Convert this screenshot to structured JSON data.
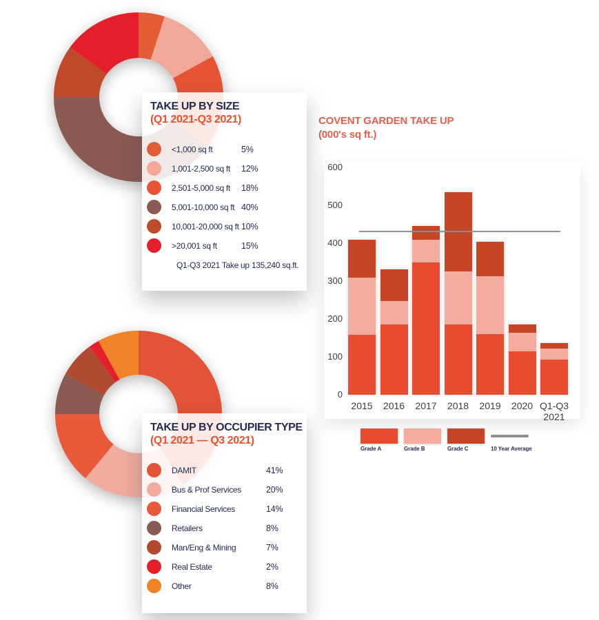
{
  "page_title": "Covent Garden Take Up Infographic",
  "accent_colors": {
    "navy_text": "#252A52",
    "orange_subtitle": "#E8512F",
    "bar_title_salmon": "#E2604C",
    "axis_text": "#3D3D3D",
    "average_line_gray": "#8F8F8F"
  },
  "chart_data": [
    {
      "type": "pie",
      "donut": true,
      "title": "TAKE UP BY SIZE",
      "subtitle": "(Q1 2021-Q3 2021)",
      "footnote": "Q1-Q3 2021 Take up 135,240 sq.ft.",
      "labels": [
        "<1,000 sq ft",
        "1,001-2,500 sq ft",
        "2,501-5,000 sq ft",
        "5,001-10,000 sq ft",
        "10,001-20,000 sq ft",
        ">20,001 sq ft"
      ],
      "values": [
        5,
        12,
        18,
        40,
        10,
        15
      ],
      "value_labels": [
        "5%",
        "12%",
        "18%",
        "40%",
        "10%",
        "15%"
      ],
      "colors": [
        "#E25C36",
        "#F2A898",
        "#E65434",
        "#8B5A50",
        "#BE4A2B",
        "#E41F2C"
      ],
      "start_angle_deg": 0,
      "legend_position": "overlay-card"
    },
    {
      "type": "pie",
      "donut": true,
      "title": "TAKE UP BY OCCUPIER TYPE",
      "subtitle": "(Q1 2021 — Q3 2021)",
      "labels": [
        "DAMIT",
        "Bus & Prof Services",
        "Financial Services",
        "Retailers",
        "Man/Eng & Mining",
        "Real Estate",
        "Other"
      ],
      "values": [
        41,
        20,
        14,
        8,
        7,
        2,
        8
      ],
      "value_labels": [
        "41%",
        "20%",
        "14%",
        "8%",
        "7%",
        "2%",
        "8%"
      ],
      "colors": [
        "#E25435",
        "#F1AC9E",
        "#E8593A",
        "#8B5A50",
        "#B04A30",
        "#E41F2C",
        "#EE8328"
      ],
      "start_angle_deg": 0,
      "legend_position": "overlay-card"
    },
    {
      "type": "bar",
      "stacked": true,
      "title": "COVENT GARDEN TAKE UP",
      "subtitle": "(000's sq ft.)",
      "categories": [
        "2015",
        "2016",
        "2017",
        "2018",
        "2019",
        "2020",
        "Q1-Q3\n2021"
      ],
      "series": [
        {
          "name": "Grade A",
          "color": "#E74C2F",
          "values": [
            158,
            185,
            350,
            185,
            160,
            115,
            92
          ]
        },
        {
          "name": "Grade B",
          "color": "#F3AC9F",
          "values": [
            152,
            63,
            60,
            140,
            153,
            48,
            30
          ]
        },
        {
          "name": "Grade C",
          "color": "#C64527",
          "values": [
            100,
            82,
            35,
            210,
            90,
            22,
            14
          ]
        }
      ],
      "totals": [
        410,
        330,
        445,
        535,
        403,
        185,
        136
      ],
      "average_line": {
        "label": "10 Year Average",
        "value": 430,
        "color": "#8F8F8F"
      },
      "ylim": [
        0,
        600
      ],
      "yticks": [
        0,
        100,
        200,
        300,
        400,
        500,
        600
      ],
      "grid": false,
      "legend_position": "bottom"
    }
  ]
}
